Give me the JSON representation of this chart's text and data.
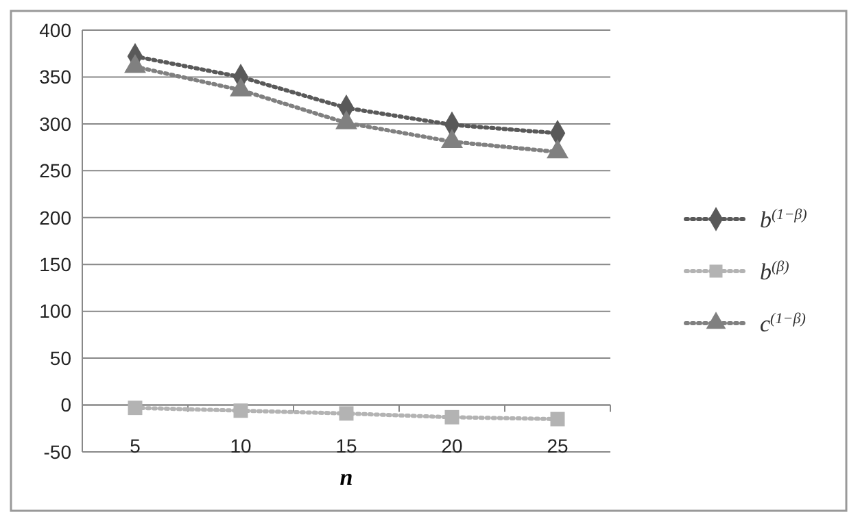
{
  "chart_data": {
    "type": "line",
    "xlabel": "n",
    "categories": [
      "5",
      "10",
      "15",
      "20",
      "25"
    ],
    "series": [
      {
        "name": "b$^{(1−β)}$",
        "color": "#595959",
        "marker": "diamond",
        "values": [
          372,
          350,
          317,
          299,
          290
        ]
      },
      {
        "name": "b$^{(β)}$",
        "color": "#b3b3b3",
        "marker": "square",
        "values": [
          -3,
          -6,
          -9,
          -13,
          -15
        ]
      },
      {
        "name": "c$^{(1−β)}$",
        "color": "#808080",
        "marker": "triangle",
        "values": [
          361,
          336,
          301,
          281,
          270
        ]
      }
    ],
    "ylim": [
      -50,
      400
    ],
    "yticks": [
      -50,
      0,
      50,
      100,
      150,
      200,
      250,
      300,
      350,
      400
    ],
    "grid": "y",
    "legend": "right",
    "line_style": "dotted"
  }
}
